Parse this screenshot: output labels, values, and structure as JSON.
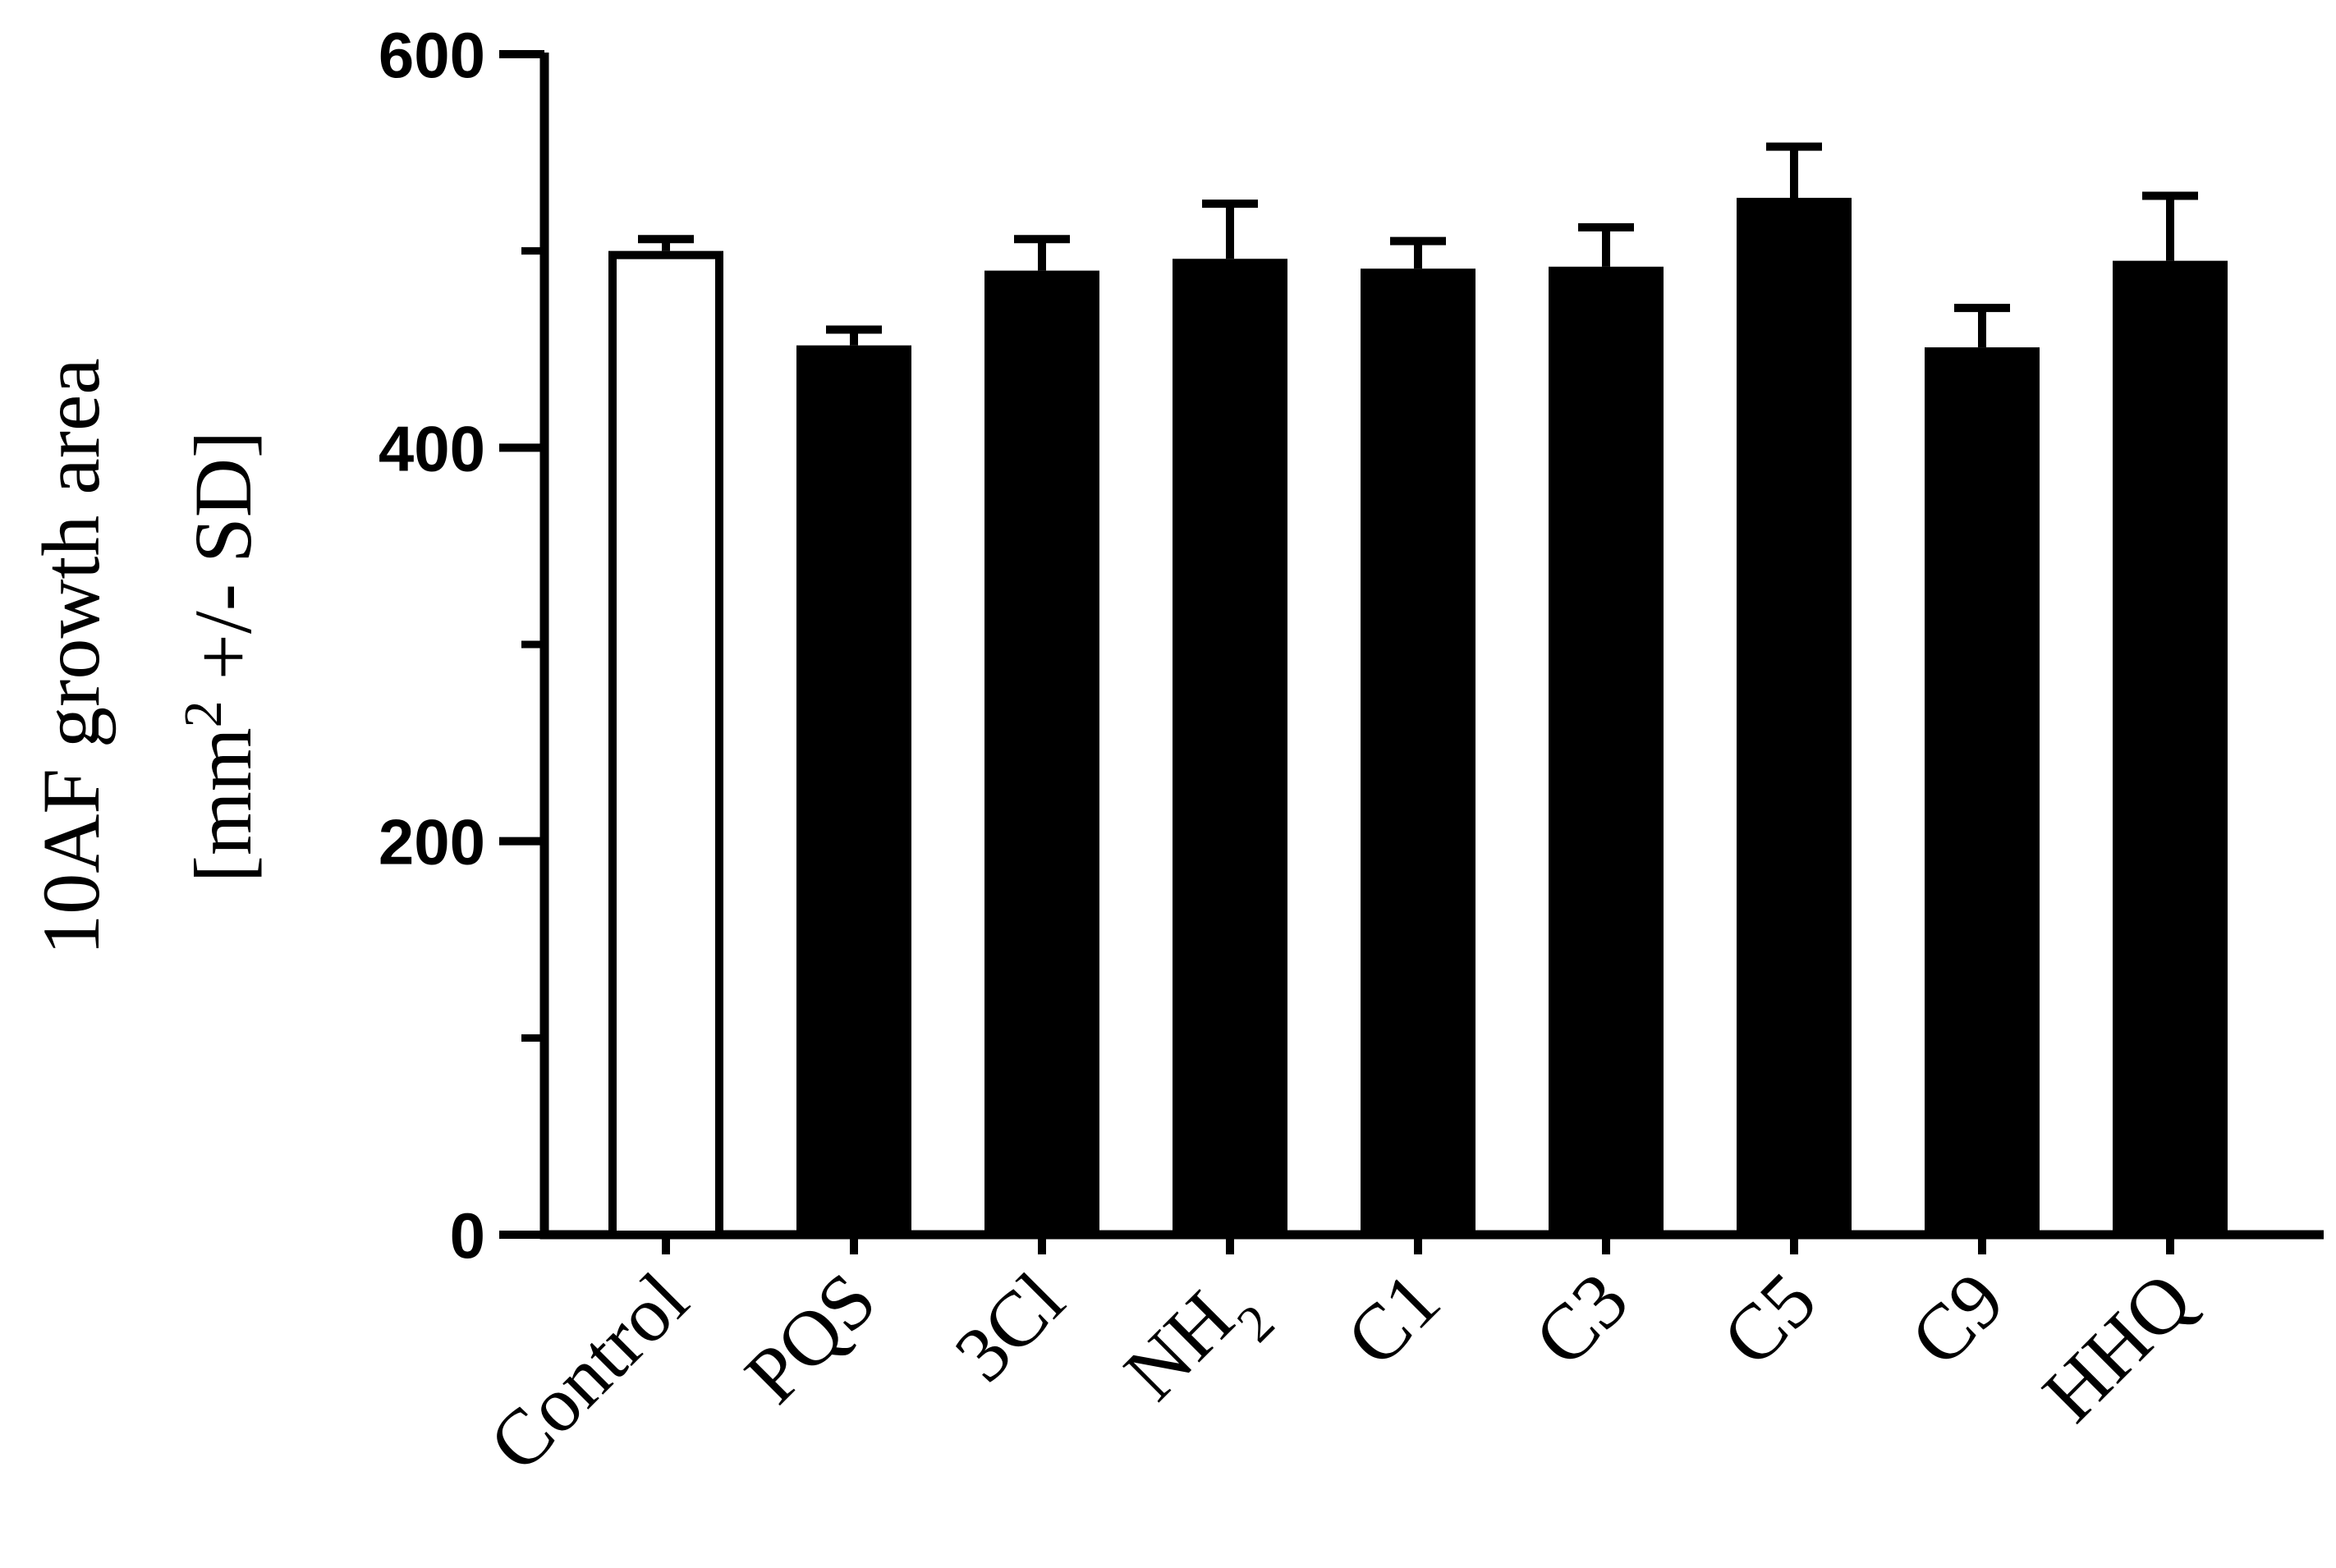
{
  "chart_data": {
    "type": "bar",
    "title": "",
    "xlabel": "",
    "ylabel": {
      "line1": "10AF growth area",
      "line2_prefix": "[mm",
      "line2_superscript": "2",
      "line2_suffix": " +/- SD]"
    },
    "ylim": [
      0,
      600
    ],
    "major_ticks": [
      0,
      200,
      400,
      600
    ],
    "minor_ticks": [
      100,
      300,
      500
    ],
    "grid": false,
    "legend": "none",
    "categories": [
      {
        "label": "Control"
      },
      {
        "label": "PQS"
      },
      {
        "label": "3Cl"
      },
      {
        "label": "NH",
        "subscript": "2"
      },
      {
        "label": "C1"
      },
      {
        "label": "C3"
      },
      {
        "label": "C5"
      },
      {
        "label": "C9"
      },
      {
        "label": "HHQ"
      }
    ],
    "values": [
      500,
      452,
      490,
      496,
      491,
      492,
      527,
      451,
      495
    ],
    "error": [
      6,
      8,
      16,
      28,
      14,
      20,
      26,
      20,
      33
    ],
    "bar_fill": [
      "#ffffff",
      "#000000",
      "#000000",
      "#000000",
      "#000000",
      "#000000",
      "#000000",
      "#000000",
      "#000000"
    ],
    "bar_stroke": "#000000"
  }
}
